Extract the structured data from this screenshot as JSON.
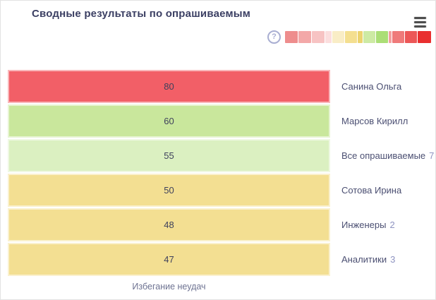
{
  "header": {
    "title": "Сводные результаты по опрашиваемым",
    "help_glyph": "?",
    "icons": [
      "question-circle-icon",
      "hamburger-icon"
    ]
  },
  "colors": {
    "title_text": "#3b3f63",
    "category_text": "#4b4f72",
    "count_text": "#8e93c1",
    "value_text": "#3e415c",
    "axis_label_text": "#6e7392",
    "help_icon": "#a9aed2",
    "menu_icon": "#4d4d4d"
  },
  "chart_data": {
    "type": "bar",
    "orientation": "horizontal",
    "title": "Сводные результаты по опрашиваемым",
    "xlabel": "Избегание неудач",
    "layout_note": "all bars rendered full width; bar color encodes the score bucket per the color-scale legend",
    "rows": [
      {
        "label": "Санина Ольга",
        "value": 80,
        "color": "#f25f67"
      },
      {
        "label": "Марсов Кирилл",
        "value": 60,
        "color": "#c9e79c"
      },
      {
        "label": "Все опрашиваемые",
        "count": 7,
        "value": 55,
        "color": "#dbf0c1"
      },
      {
        "label": "Сотова Ирина",
        "value": 50,
        "color": "#f3df92"
      },
      {
        "label": "Инженеры",
        "count": 2,
        "value": 48,
        "color": "#f3df92"
      },
      {
        "label": "Аналитики",
        "count": 3,
        "value": 47,
        "color": "#f3df92"
      }
    ],
    "legend_scale": {
      "position": "top-right",
      "segments": [
        {
          "color": "#ee8d8d",
          "width": 18
        },
        {
          "color": "#f3a8a8",
          "width": 18
        },
        {
          "color": "#f7c3c3",
          "width": 18
        },
        {
          "color": "#fbdede",
          "width": 9
        },
        {
          "color": "#f9edc6",
          "width": 17
        },
        {
          "color": "#f4df90",
          "width": 17
        },
        {
          "color": "#ecd36f",
          "width": 7
        },
        {
          "color": "#cdeaa4",
          "width": 17
        },
        {
          "color": "#abde76",
          "width": 17
        },
        {
          "color": "#f4a0a0",
          "width": 4
        },
        {
          "color": "#ef7a7a",
          "width": 17
        },
        {
          "color": "#ec5757",
          "width": 17
        },
        {
          "color": "#e92f2f",
          "width": 19
        }
      ]
    }
  }
}
